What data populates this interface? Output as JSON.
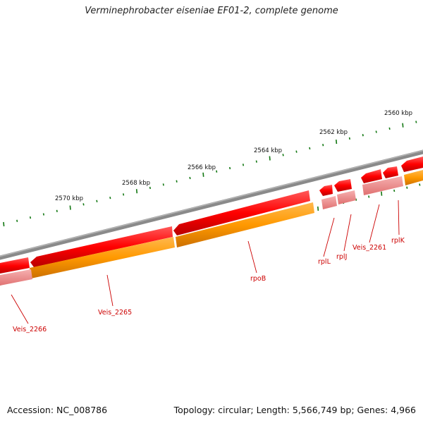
{
  "title": "Verminephrobacter eiseniae EF01-2, complete genome",
  "footer": {
    "accession": "Accession: NC_008786",
    "summary": "Topology: circular; Length: 5,566,749 bp; Genes: 4,966"
  },
  "scale_labels": [
    "2560 kbp",
    "2562 kbp",
    "2564 kbp",
    "2566 kbp",
    "2568 kbp",
    "2570 kbp"
  ],
  "gene_labels": [
    "rplK",
    "Veis_2261",
    "rplJ",
    "rplL",
    "rpoB",
    "Veis_2265",
    "Veis_2266"
  ],
  "colors": {
    "backbone": "#8a8a8a",
    "gene": "#ff0000",
    "cds": "#ff9900",
    "feature": "#f08a8a",
    "tick": "#117711",
    "label": "#cc0000"
  }
}
